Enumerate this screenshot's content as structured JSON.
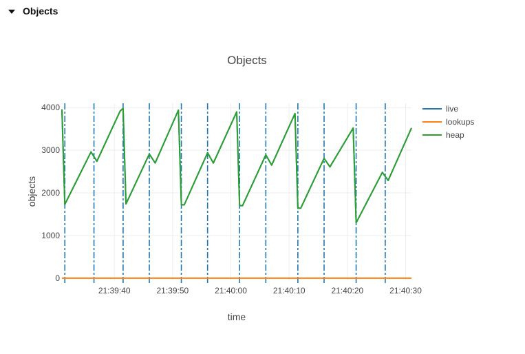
{
  "section": {
    "label": "Objects",
    "icon": "caret-down-icon"
  },
  "chart_data": {
    "type": "line",
    "title": "Objects",
    "xlabel": "time",
    "ylabel": "objects",
    "x_ticks": [
      "21:39:40",
      "21:39:50",
      "21:40:00",
      "21:40:10",
      "21:40:20",
      "21:40:30"
    ],
    "y_ticks": [
      "0",
      "1000",
      "2000",
      "3000",
      "4000"
    ],
    "xlim": [
      "21:39:31",
      "21:40:31"
    ],
    "ylim": [
      -50,
      4100
    ],
    "legend": "right",
    "series": [
      {
        "name": "live",
        "color": "#1f77b4",
        "x": [
          "21:39:31",
          "21:39:31.5",
          "21:39:36",
          "21:39:37",
          "21:39:41",
          "21:39:41.5",
          "21:39:42",
          "21:39:46",
          "21:39:47",
          "21:39:51",
          "21:39:51.5",
          "21:39:52",
          "21:39:56",
          "21:39:57",
          "21:40:01",
          "21:40:01.5",
          "21:40:02",
          "21:40:06",
          "21:40:07",
          "21:40:11",
          "21:40:11.5",
          "21:40:12",
          "21:40:16",
          "21:40:17",
          "21:40:21",
          "21:40:21.5",
          "21:40:26",
          "21:40:27",
          "21:40:31"
        ],
        "y": [
          3960,
          1730,
          2960,
          2740,
          3920,
          3980,
          1740,
          2910,
          2700,
          3940,
          1720,
          1720,
          2940,
          2700,
          3900,
          1700,
          1700,
          2890,
          2650,
          3860,
          1640,
          1640,
          2810,
          2610,
          3520,
          1300,
          2480,
          2290,
          3520
        ]
      },
      {
        "name": "lookups",
        "color": "#ff7f0e",
        "x": [
          "21:39:31",
          "21:40:31"
        ],
        "y": [
          0,
          0
        ]
      },
      {
        "name": "heap",
        "color": "#2ca02c",
        "x": [
          "21:39:31",
          "21:39:31.5",
          "21:39:36",
          "21:39:37",
          "21:39:41",
          "21:39:41.5",
          "21:39:42",
          "21:39:46",
          "21:39:47",
          "21:39:51",
          "21:39:51.5",
          "21:39:52",
          "21:39:56",
          "21:39:57",
          "21:40:01",
          "21:40:01.5",
          "21:40:02",
          "21:40:06",
          "21:40:07",
          "21:40:11",
          "21:40:11.5",
          "21:40:12",
          "21:40:16",
          "21:40:17",
          "21:40:21",
          "21:40:21.5",
          "21:40:26",
          "21:40:27",
          "21:40:31"
        ],
        "y": [
          3960,
          1730,
          2960,
          2740,
          3920,
          3980,
          1740,
          2910,
          2700,
          3940,
          1720,
          1720,
          2940,
          2700,
          3900,
          1700,
          1700,
          2890,
          2650,
          3860,
          1640,
          1640,
          2810,
          2610,
          3520,
          1300,
          2480,
          2290,
          3520
        ]
      }
    ],
    "gc_markers": {
      "color": "#1f77b4",
      "x": [
        "21:39:31.5",
        "21:39:36.5",
        "21:39:41.5",
        "21:39:46",
        "21:39:51.5",
        "21:39:56",
        "21:40:01.5",
        "21:40:06",
        "21:40:11.5",
        "21:40:16",
        "21:40:21.5",
        "21:40:26.5"
      ]
    }
  }
}
